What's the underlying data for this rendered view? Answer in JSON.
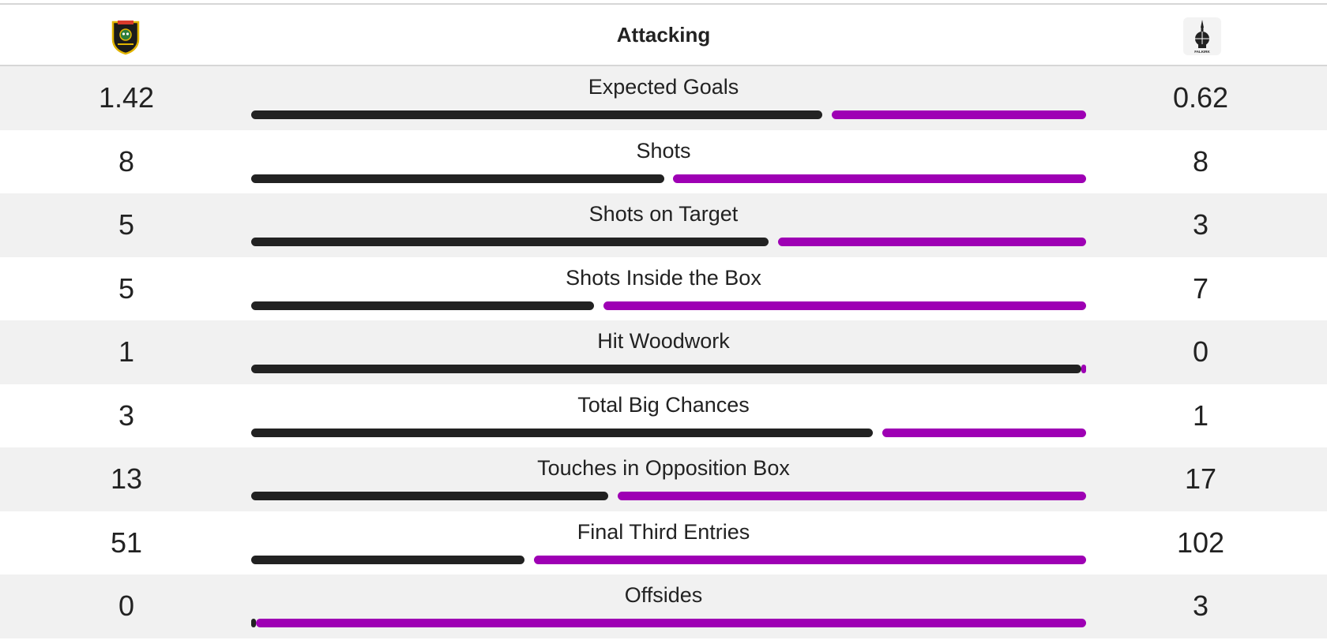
{
  "header": {
    "title": "Attacking",
    "home_logo_icon": "home-club-crest-icon",
    "away_logo_icon": "falkirk-crest-icon",
    "away_logo_text": "FALKIRK"
  },
  "colors": {
    "home": "#222222",
    "away": "#9e00b4"
  },
  "stats": [
    {
      "label": "Expected Goals",
      "home": "1.42",
      "away": "0.62",
      "home_share": 0.69
    },
    {
      "label": "Shots",
      "home": "8",
      "away": "8",
      "home_share": 0.5
    },
    {
      "label": "Shots on Target",
      "home": "5",
      "away": "3",
      "home_share": 0.625
    },
    {
      "label": "Shots Inside the Box",
      "home": "5",
      "away": "7",
      "home_share": 0.4167
    },
    {
      "label": "Hit Woodwork",
      "home": "1",
      "away": "0",
      "home_share": 1.0
    },
    {
      "label": "Total Big Chances",
      "home": "3",
      "away": "1",
      "home_share": 0.75
    },
    {
      "label": "Touches in Opposition Box",
      "home": "13",
      "away": "17",
      "home_share": 0.4333
    },
    {
      "label": "Final Third Entries",
      "home": "51",
      "away": "102",
      "home_share": 0.3333
    },
    {
      "label": "Offsides",
      "home": "0",
      "away": "3",
      "home_share": 0.0
    }
  ]
}
